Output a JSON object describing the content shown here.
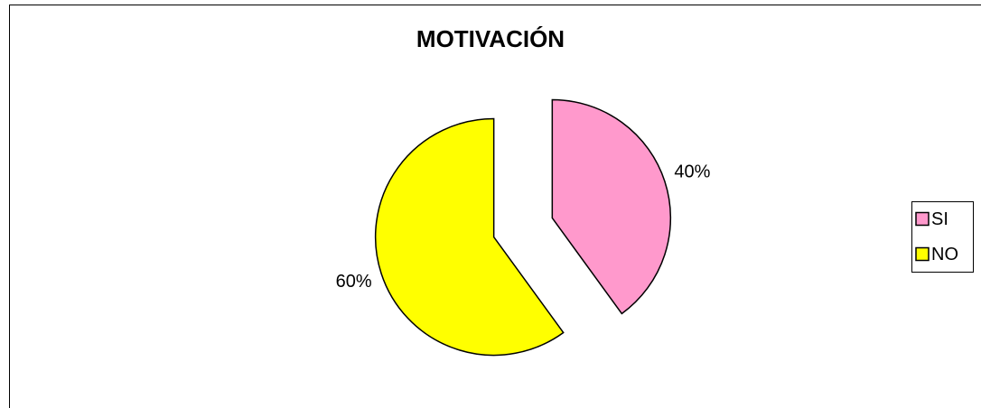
{
  "chart_data": {
    "type": "pie",
    "title": "MOTIVACIÓN",
    "categories": [
      "SI",
      "NO"
    ],
    "values": [
      40,
      60
    ],
    "value_labels": [
      "40%",
      "60%"
    ],
    "colors": [
      "#FF99CC",
      "#FFFF00"
    ],
    "legend": "right"
  }
}
